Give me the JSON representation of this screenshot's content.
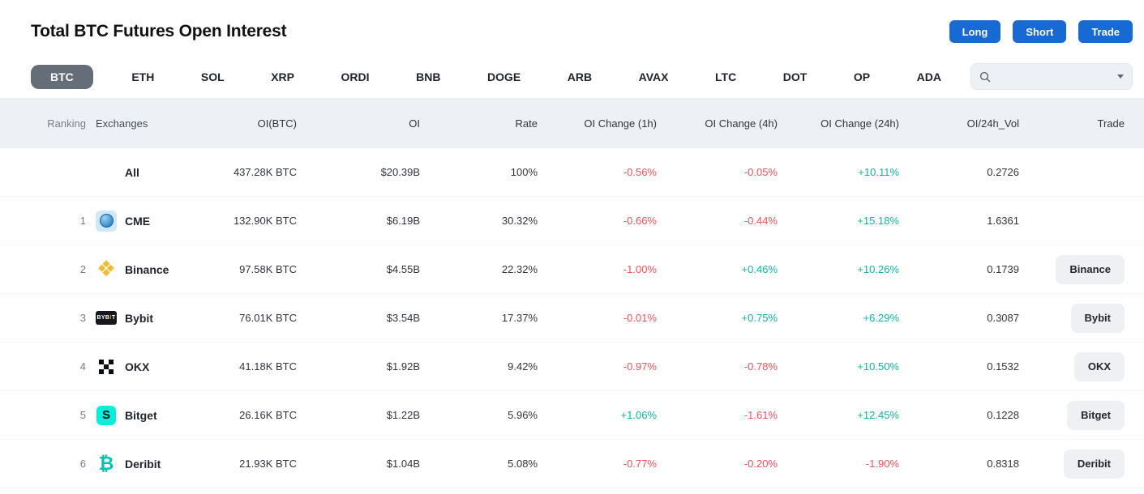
{
  "page": {
    "title": "Total BTC Futures Open Interest"
  },
  "actions": {
    "long": "Long",
    "short": "Short",
    "trade": "Trade"
  },
  "tabs": [
    "BTC",
    "ETH",
    "SOL",
    "XRP",
    "ORDI",
    "BNB",
    "DOGE",
    "ARB",
    "AVAX",
    "LTC",
    "DOT",
    "OP",
    "ADA"
  ],
  "selected_tab": "BTC",
  "search": {
    "value": "",
    "placeholder": ""
  },
  "colors": {
    "accent_blue": "#1769d4",
    "positive": "#0eb79e",
    "negative": "#f4505a",
    "selected_tab_bg": "#656d78",
    "header_bg": "#edf0f4"
  },
  "table": {
    "headers": [
      "Ranking",
      "Exchanges",
      "OI(BTC)",
      "OI",
      "Rate",
      "OI Change (1h)",
      "OI Change (4h)",
      "OI Change (24h)",
      "OI/24h_Vol",
      "Trade"
    ],
    "rows": [
      {
        "rank": "",
        "name": "All",
        "icon": "",
        "oi_btc": "437.28K BTC",
        "oi": "$20.39B",
        "rate": "100%",
        "chg_1h": "-0.56%",
        "chg_4h": "-0.05%",
        "chg_24h": "+10.11%",
        "oi_24h_vol": "0.2726",
        "trade": ""
      },
      {
        "rank": "1",
        "name": "CME",
        "icon": "cme",
        "oi_btc": "132.90K BTC",
        "oi": "$6.19B",
        "rate": "30.32%",
        "chg_1h": "-0.66%",
        "chg_4h": "-0.44%",
        "chg_24h": "+15.18%",
        "oi_24h_vol": "1.6361",
        "trade": ""
      },
      {
        "rank": "2",
        "name": "Binance",
        "icon": "binance",
        "oi_btc": "97.58K BTC",
        "oi": "$4.55B",
        "rate": "22.32%",
        "chg_1h": "-1.00%",
        "chg_4h": "+0.46%",
        "chg_24h": "+10.26%",
        "oi_24h_vol": "0.1739",
        "trade": "Binance"
      },
      {
        "rank": "3",
        "name": "Bybit",
        "icon": "bybit",
        "oi_btc": "76.01K BTC",
        "oi": "$3.54B",
        "rate": "17.37%",
        "chg_1h": "-0.01%",
        "chg_4h": "+0.75%",
        "chg_24h": "+6.29%",
        "oi_24h_vol": "0.3087",
        "trade": "Bybit"
      },
      {
        "rank": "4",
        "name": "OKX",
        "icon": "okx",
        "oi_btc": "41.18K BTC",
        "oi": "$1.92B",
        "rate": "9.42%",
        "chg_1h": "-0.97%",
        "chg_4h": "-0.78%",
        "chg_24h": "+10.50%",
        "oi_24h_vol": "0.1532",
        "trade": "OKX"
      },
      {
        "rank": "5",
        "name": "Bitget",
        "icon": "bitget",
        "oi_btc": "26.16K BTC",
        "oi": "$1.22B",
        "rate": "5.96%",
        "chg_1h": "+1.06%",
        "chg_4h": "-1.61%",
        "chg_24h": "+12.45%",
        "oi_24h_vol": "0.1228",
        "trade": "Bitget"
      },
      {
        "rank": "6",
        "name": "Deribit",
        "icon": "deribit",
        "oi_btc": "21.93K BTC",
        "oi": "$1.04B",
        "rate": "5.08%",
        "chg_1h": "-0.77%",
        "chg_4h": "-0.20%",
        "chg_24h": "-1.90%",
        "oi_24h_vol": "0.8318",
        "trade": "Deribit"
      }
    ]
  }
}
